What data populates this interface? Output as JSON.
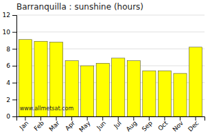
{
  "chart_data": {
    "type": "bar",
    "title": "Barranquilla : sunshine (hours)",
    "categories": [
      "Jan",
      "Feb",
      "Mar",
      "Apr",
      "May",
      "Jun",
      "Jul",
      "Aug",
      "Sep",
      "Oct",
      "Nov",
      "Dec"
    ],
    "values": [
      9.1,
      8.9,
      8.8,
      6.6,
      6.0,
      6.3,
      6.9,
      6.6,
      5.4,
      5.4,
      5.1,
      8.2
    ],
    "color": "#ffff00",
    "ylim": [
      0,
      12
    ],
    "yticks": [
      0,
      2,
      4,
      6,
      8,
      10,
      12
    ],
    "grid": true,
    "annotation": "www.allmetsat.com"
  }
}
